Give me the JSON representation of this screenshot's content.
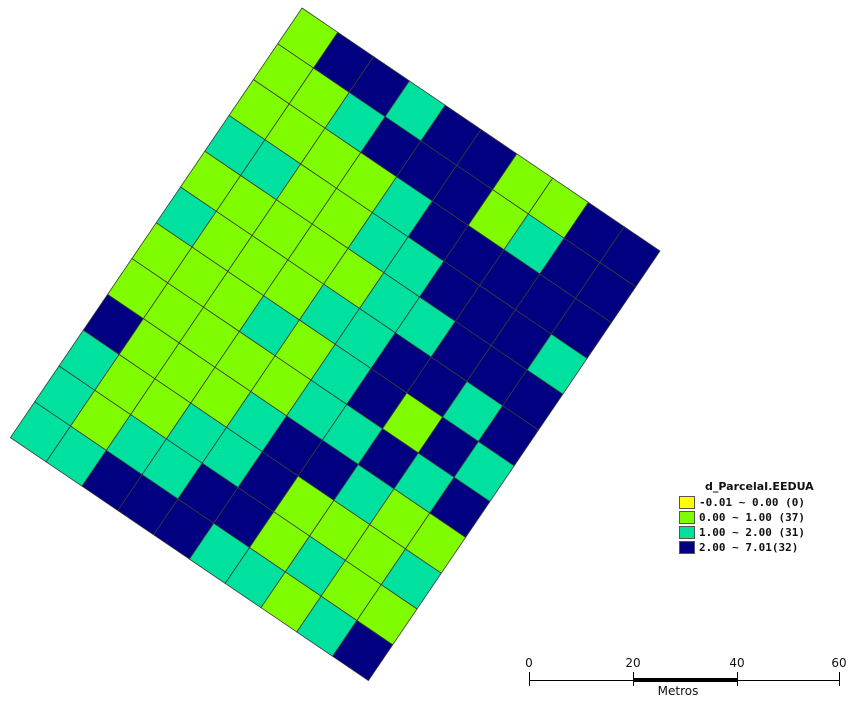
{
  "map": {
    "colors": {
      "class_0": "#ffff00",
      "class_1": "#7ffc00",
      "class_2": "#00e09e",
      "class_3": "#000080",
      "grid_line": "#3a3a3a"
    },
    "grid_rows": [
      [
        1,
        3,
        3,
        2,
        3,
        3,
        1,
        1,
        3,
        3
      ],
      [
        1,
        1,
        2,
        3,
        3,
        3,
        1,
        2,
        3,
        3
      ],
      [
        1,
        1,
        1,
        1,
        2,
        3,
        3,
        3,
        3,
        3
      ],
      [
        2,
        2,
        1,
        1,
        2,
        2,
        3,
        3,
        3,
        2
      ],
      [
        1,
        1,
        1,
        1,
        1,
        2,
        2,
        3,
        3,
        3
      ],
      [
        2,
        1,
        1,
        1,
        2,
        2,
        3,
        3,
        2,
        3
      ],
      [
        1,
        1,
        1,
        2,
        1,
        2,
        3,
        1,
        3,
        2
      ],
      [
        1,
        1,
        1,
        1,
        1,
        2,
        2,
        3,
        2,
        3
      ],
      [
        3,
        1,
        1,
        1,
        2,
        3,
        3,
        2,
        1,
        1
      ],
      [
        2,
        1,
        1,
        2,
        2,
        3,
        1,
        1,
        1,
        2
      ],
      [
        2,
        1,
        2,
        2,
        3,
        3,
        1,
        2,
        1,
        1
      ],
      [
        2,
        2,
        3,
        3,
        3,
        2,
        2,
        1,
        2,
        3
      ]
    ]
  },
  "legend": {
    "title": "d_ParcelaI.EEDUA",
    "items": [
      {
        "label": "-0.01 ~ 0.00 (0)",
        "color": "#ffff00"
      },
      {
        "label": "0.00 ~ 1.00 (37)",
        "color": "#7ffc00"
      },
      {
        "label": "1.00 ~ 2.00 (31)",
        "color": "#00e09e"
      },
      {
        "label": "2.00 ~ 7.01(32)",
        "color": "#000080"
      }
    ]
  },
  "scalebar": {
    "ticks": [
      "0",
      "20",
      "40",
      "60"
    ],
    "unit": "Metros"
  }
}
